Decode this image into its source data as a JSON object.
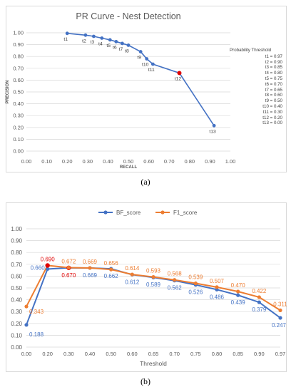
{
  "chart_data": [
    {
      "type": "line",
      "title": "PR Curve - Nest Detection",
      "xlabel": "RECALL",
      "ylabel": "PRECISION",
      "xlim": [
        0,
        1
      ],
      "ylim": [
        0,
        1
      ],
      "x_ticks": [
        "0.00",
        "0.10",
        "0.20",
        "0.30",
        "0.40",
        "0.50",
        "0.60",
        "0.70",
        "0.80",
        "0.90",
        "1.00"
      ],
      "y_ticks": [
        "0.00",
        "0.10",
        "0.20",
        "0.30",
        "0.40",
        "0.50",
        "0.60",
        "0.70",
        "0.80",
        "0.90",
        "1.00"
      ],
      "grid": "horizontal",
      "series": [
        {
          "color": "#4472c4",
          "points": [
            {
              "label": "t1",
              "x": 0.2,
              "y": 0.995
            },
            {
              "label": "t2",
              "x": 0.29,
              "y": 0.98
            },
            {
              "label": "t3",
              "x": 0.33,
              "y": 0.97
            },
            {
              "label": "t4",
              "x": 0.37,
              "y": 0.955
            },
            {
              "label": "t5",
              "x": 0.41,
              "y": 0.94
            },
            {
              "label": "t6",
              "x": 0.44,
              "y": 0.925
            },
            {
              "label": "t7",
              "x": 0.47,
              "y": 0.91
            },
            {
              "label": "t8",
              "x": 0.5,
              "y": 0.895
            },
            {
              "label": "t9",
              "x": 0.56,
              "y": 0.84
            },
            {
              "label": "t10",
              "x": 0.59,
              "y": 0.78
            },
            {
              "label": "t11",
              "x": 0.62,
              "y": 0.735
            },
            {
              "label": "t12",
              "x": 0.75,
              "y": 0.66
            },
            {
              "label": "t13",
              "x": 0.92,
              "y": 0.215
            }
          ],
          "highlight_label": "t12",
          "highlight_color": "#e00000"
        }
      ],
      "threshold_legend": {
        "title": "Probability Threshold",
        "items": [
          "t1 = 0.97",
          "t2 = 0.90",
          "t3 = 0.85",
          "t4 = 0.80",
          "t5 = 0.75",
          "t6 = 0.70",
          "t7 = 0.65",
          "t8 = 0.60",
          "t9 = 0.50",
          "t10 = 0.40",
          "t11 = 0.30",
          "t12 = 0.20",
          "t13 = 0.00"
        ]
      }
    },
    {
      "type": "line",
      "xlabel": "Threshold",
      "ylim": [
        0,
        1
      ],
      "legend": "top",
      "grid": "horizontal",
      "categories": [
        "0.00",
        "0.20",
        "0.30",
        "0.40",
        "0.50",
        "0.60",
        "0.65",
        "0.70",
        "0.75",
        "0.80",
        "0.85",
        "0.90",
        "0.97"
      ],
      "y_ticks": [
        "0.00",
        "0.10",
        "0.20",
        "0.30",
        "0.40",
        "0.50",
        "0.60",
        "0.70",
        "0.80",
        "0.90",
        "1.00"
      ],
      "series": [
        {
          "name": "BF_score",
          "color": "#4472c4",
          "label_color": "#4472c4",
          "values": [
            0.188,
            0.66,
            0.67,
            0.669,
            0.662,
            0.612,
            0.589,
            0.562,
            0.526,
            0.486,
            0.439,
            0.379,
            0.247
          ],
          "labels": [
            "0.188",
            "0.660",
            "0.670",
            "0.669",
            "0.662",
            "0.612",
            "0.589",
            "0.562",
            "0.526",
            "0.486",
            "0.439",
            "0.379",
            "0.247"
          ]
        },
        {
          "name": "F1_score",
          "color": "#ed7d31",
          "label_color": "#ed7d31",
          "values": [
            0.343,
            0.69,
            0.672,
            0.669,
            0.656,
            0.614,
            0.593,
            0.568,
            0.539,
            0.507,
            0.47,
            0.422,
            0.311
          ],
          "labels": [
            "0.343",
            "0.690",
            "0.672",
            "0.669",
            "0.656",
            "0.614",
            "0.593",
            "0.568",
            "0.539",
            "0.507",
            "0.470",
            "0.422",
            "0.311"
          ]
        }
      ],
      "highlights": [
        {
          "series": "F1_score",
          "index": 1,
          "color": "#e00000"
        },
        {
          "series": "BF_score",
          "index": 2,
          "color": "#e00000"
        }
      ]
    }
  ],
  "captions": {
    "a": "(a)",
    "b": "(b)"
  }
}
